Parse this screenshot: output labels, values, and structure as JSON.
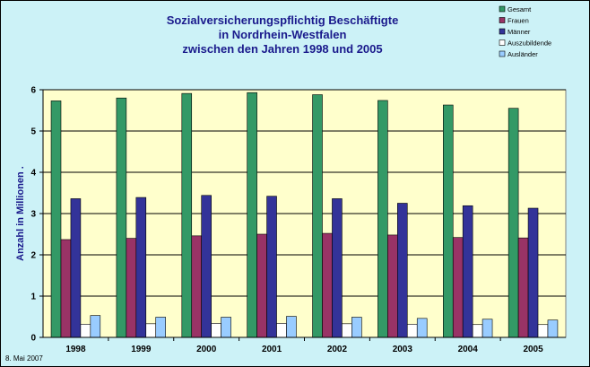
{
  "chart_data": {
    "type": "bar",
    "title": [
      "Sozialversicherungspflichtig Beschäftigte",
      "in Nordrhein-Westfalen",
      "zwischen den Jahren 1998 und 2005"
    ],
    "ylabel": "Anzahl in Millionen .",
    "xlabel": "",
    "ylim": [
      0,
      6
    ],
    "yticks": [
      "0",
      "1",
      "2",
      "3",
      "4",
      "5",
      "6"
    ],
    "categories": [
      "1998",
      "1999",
      "2000",
      "2001",
      "2002",
      "2003",
      "2004",
      "2005"
    ],
    "legend_position": "top-right",
    "grid": true,
    "series": [
      {
        "name": "Gesamt",
        "color": "#339966",
        "values": [
          5.73,
          5.8,
          5.91,
          5.93,
          5.88,
          5.74,
          5.63,
          5.55
        ]
      },
      {
        "name": "Frauen",
        "color": "#993366",
        "values": [
          2.37,
          2.4,
          2.46,
          2.5,
          2.52,
          2.48,
          2.42,
          2.41
        ]
      },
      {
        "name": "Männer",
        "color": "#333399",
        "values": [
          3.36,
          3.39,
          3.44,
          3.42,
          3.36,
          3.25,
          3.19,
          3.13
        ]
      },
      {
        "name": "Auszubildende",
        "color": "#ffffff",
        "values": [
          0.32,
          0.33,
          0.34,
          0.34,
          0.33,
          0.32,
          0.31,
          0.31
        ]
      },
      {
        "name": "Ausländer",
        "color": "#99ccff",
        "values": [
          0.53,
          0.49,
          0.49,
          0.51,
          0.49,
          0.46,
          0.44,
          0.42
        ]
      }
    ]
  },
  "footer": {
    "date": "8. Mai 2007"
  }
}
